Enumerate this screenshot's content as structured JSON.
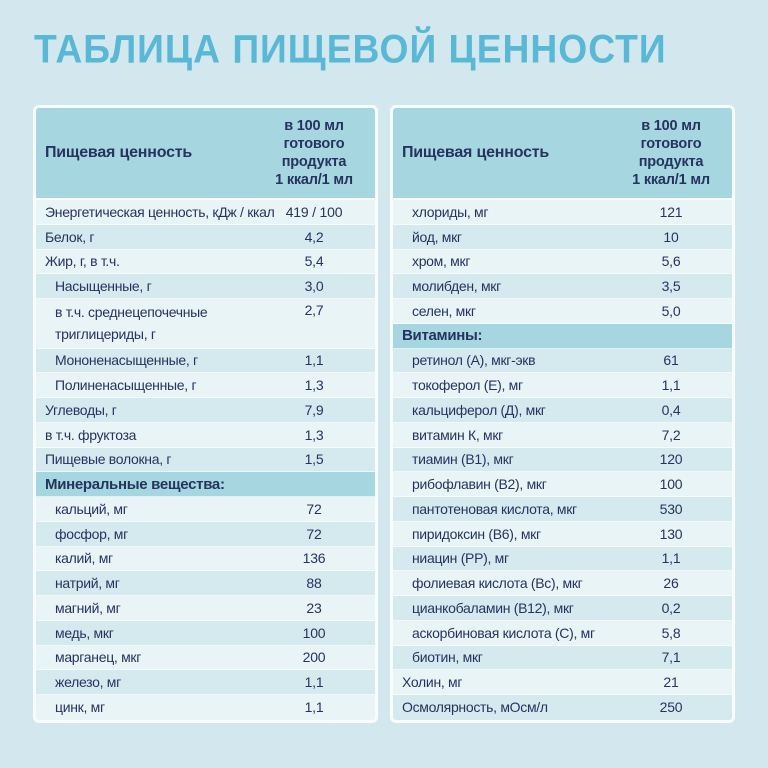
{
  "title": "ТАБЛИЦА ПИЩЕВОЙ ЦЕННОСТИ",
  "colors": {
    "background": "#d2e8ee",
    "title": "#58b8d6",
    "text": "#26335f",
    "table_border": "#f8fcfd",
    "header_bg": "#a6d6e0",
    "section_bg": "#a6d6e0",
    "row_light": "#e9f4f6",
    "row_dark": "#d5eaef"
  },
  "tables": [
    {
      "header": {
        "label": "Пищевая ценность",
        "value": "в 100 мл\nготового\nпродукта\n1 ккал/1 мл"
      },
      "rows": [
        {
          "label": "Энергетическая ценность, кДж / ккал",
          "value": "419 / 100",
          "shade": "light"
        },
        {
          "label": "Белок, г",
          "value": "4,2",
          "shade": "dark"
        },
        {
          "label": "Жир, г, в т.ч.",
          "value": "5,4",
          "shade": "light"
        },
        {
          "label": "Насыщенные, г",
          "value": "3,0",
          "shade": "dark",
          "indent": true
        },
        {
          "label": "в т.ч. среднецепочечные триглицериды, г",
          "value": "2,7",
          "shade": "light",
          "indent": true,
          "tall": true
        },
        {
          "label": "Мононенасыщенные, г",
          "value": "1,1",
          "shade": "dark",
          "indent": true
        },
        {
          "label": "Полиненасыщенные, г",
          "value": "1,3",
          "shade": "light",
          "indent": true
        },
        {
          "label": "Углеводы, г",
          "value": "7,9",
          "shade": "dark"
        },
        {
          "label": "в т.ч. фруктоза",
          "value": "1,3",
          "shade": "light"
        },
        {
          "label": "Пищевые волокна, г",
          "value": "1,5",
          "shade": "dark"
        },
        {
          "label": "Минеральные вещества:",
          "section": true
        },
        {
          "label": "кальций, мг",
          "value": "72",
          "shade": "light",
          "indent": true
        },
        {
          "label": "фосфор, мг",
          "value": "72",
          "shade": "dark",
          "indent": true
        },
        {
          "label": "калий, мг",
          "value": "136",
          "shade": "light",
          "indent": true
        },
        {
          "label": "натрий, мг",
          "value": "88",
          "shade": "dark",
          "indent": true
        },
        {
          "label": "магний, мг",
          "value": "23",
          "shade": "light",
          "indent": true
        },
        {
          "label": "медь, мкг",
          "value": "100",
          "shade": "dark",
          "indent": true
        },
        {
          "label": "марганец, мкг",
          "value": "200",
          "shade": "light",
          "indent": true
        },
        {
          "label": "железо, мг",
          "value": "1,1",
          "shade": "dark",
          "indent": true
        },
        {
          "label": "цинк, мг",
          "value": "1,1",
          "shade": "light",
          "indent": true
        }
      ]
    },
    {
      "header": {
        "label": "Пищевая ценность",
        "value": "в 100 мл\nготового\nпродукта\n1 ккал/1 мл"
      },
      "rows": [
        {
          "label": "хлориды, мг",
          "value": "121",
          "shade": "light",
          "indent": true
        },
        {
          "label": "йод, мкг",
          "value": "10",
          "shade": "dark",
          "indent": true
        },
        {
          "label": "хром, мкг",
          "value": "5,6",
          "shade": "light",
          "indent": true
        },
        {
          "label": "молибден, мкг",
          "value": "3,5",
          "shade": "dark",
          "indent": true
        },
        {
          "label": "селен, мкг",
          "value": "5,0",
          "shade": "light",
          "indent": true
        },
        {
          "label": "Витамины:",
          "section": true
        },
        {
          "label": "ретинол (А), мкг-экв",
          "value": "61",
          "shade": "dark",
          "indent": true
        },
        {
          "label": "токоферол (Е), мг",
          "value": "1,1",
          "shade": "light",
          "indent": true
        },
        {
          "label": "кальциферол (Д), мкг",
          "value": "0,4",
          "shade": "dark",
          "indent": true
        },
        {
          "label": "витамин К, мкг",
          "value": "7,2",
          "shade": "light",
          "indent": true
        },
        {
          "label": "тиамин (В1), мкг",
          "value": "120",
          "shade": "dark",
          "indent": true
        },
        {
          "label": "рибофлавин (В2), мкг",
          "value": "100",
          "shade": "light",
          "indent": true
        },
        {
          "label": "пантотеновая кислота, мкг",
          "value": "530",
          "shade": "dark",
          "indent": true
        },
        {
          "label": "пиридоксин (В6), мкг",
          "value": "130",
          "shade": "light",
          "indent": true
        },
        {
          "label": "ниацин (РР), мг",
          "value": "1,1",
          "shade": "dark",
          "indent": true
        },
        {
          "label": "фолиевая кислота (Вс), мкг",
          "value": "26",
          "shade": "light",
          "indent": true
        },
        {
          "label": "цианкобаламин (В12), мкг",
          "value": "0,2",
          "shade": "dark",
          "indent": true
        },
        {
          "label": "аскорбиновая кислота (С), мг",
          "value": "5,8",
          "shade": "light",
          "indent": true
        },
        {
          "label": "биотин, мкг",
          "value": "7,1",
          "shade": "dark",
          "indent": true
        },
        {
          "label": "Холин, мг",
          "value": "21",
          "shade": "light"
        },
        {
          "label": "Осмолярность, мОсм/л",
          "value": "250",
          "shade": "dark"
        }
      ]
    }
  ]
}
